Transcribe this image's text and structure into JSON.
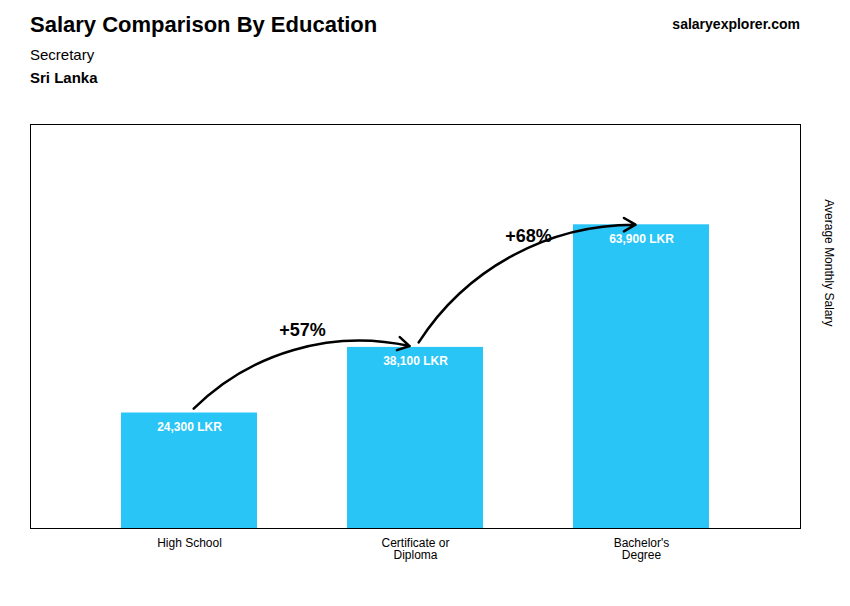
{
  "chart_data": {
    "type": "bar",
    "title": "Salary Comparison By Education",
    "subtitle": "Secretary",
    "annotations": [
      "Sri Lanka",
      "salaryexplorer.com"
    ],
    "ylabel": "Average Monthly Salary",
    "categories": [
      "High School",
      "Certificate or\nDiploma",
      "Bachelor's\nDegree"
    ],
    "values": [
      24300,
      38100,
      63900
    ],
    "value_labels": [
      "24,300 LKR",
      "38,100 LKR",
      "63,900 LKR"
    ],
    "data_labels": true,
    "changes": [
      {
        "value": 57,
        "label": "+57%"
      },
      {
        "value": 68,
        "label": "+68%"
      }
    ],
    "color": "#29c5f6",
    "ylim": [
      0,
      85000
    ],
    "tick_labels": "x",
    "grid": false
  }
}
